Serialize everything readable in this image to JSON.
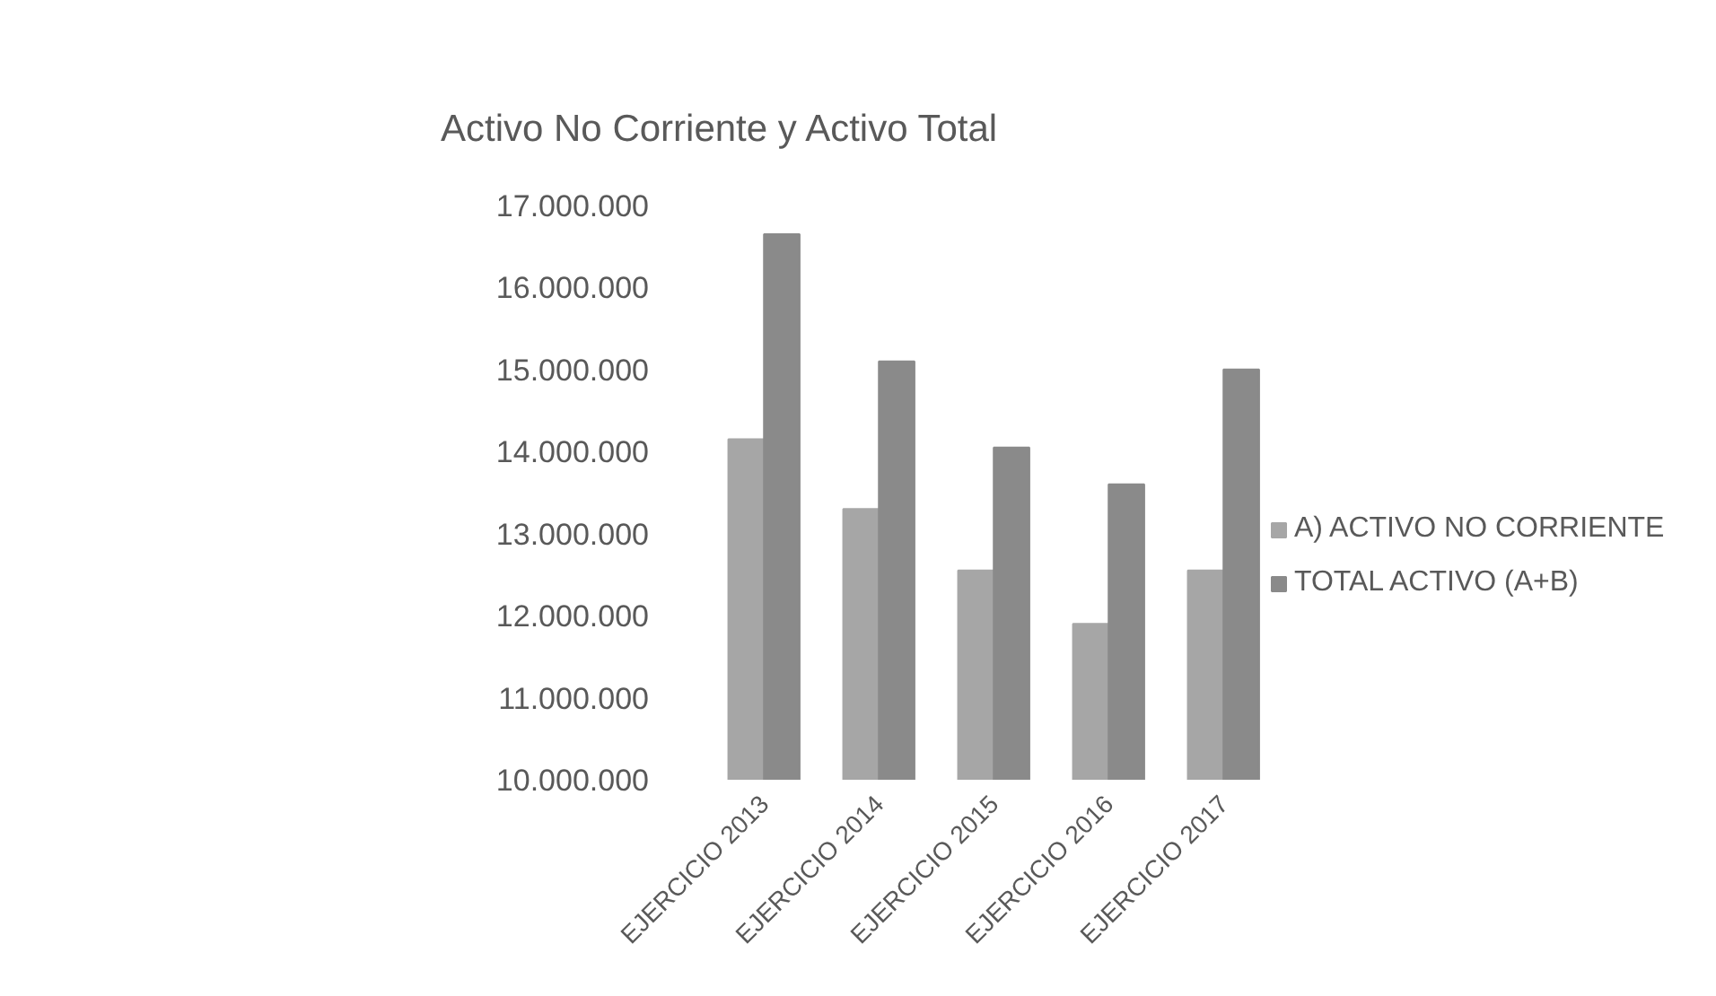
{
  "chart_data": {
    "type": "bar",
    "title": "Activo No Corriente y Activo Total",
    "categories": [
      "EJERCICIO 2013",
      "EJERCICIO 2014",
      "EJERCICIO 2015",
      "EJERCICIO 2016",
      "EJERCICIO 2017"
    ],
    "series": [
      {
        "name": "A) ACTIVO NO CORRIENTE",
        "color": "#a6a6a6",
        "values": [
          14150000,
          13300000,
          12550000,
          11900000,
          12550000
        ]
      },
      {
        "name": "TOTAL ACTIVO (A+B)",
        "color": "#8a8a8a",
        "values": [
          16650000,
          15100000,
          14050000,
          13600000,
          15000000
        ]
      }
    ],
    "ylim": [
      10000000,
      17000000
    ],
    "yticks": [
      {
        "value": 10000000,
        "label": "10.000.000"
      },
      {
        "value": 11000000,
        "label": "11.000.000"
      },
      {
        "value": 12000000,
        "label": "12.000.000"
      },
      {
        "value": 13000000,
        "label": "13.000.000"
      },
      {
        "value": 14000000,
        "label": "14.000.000"
      },
      {
        "value": 15000000,
        "label": "15.000.000"
      },
      {
        "value": 16000000,
        "label": "16.000.000"
      },
      {
        "value": 17000000,
        "label": "17.000.000"
      }
    ],
    "legend": "right"
  }
}
